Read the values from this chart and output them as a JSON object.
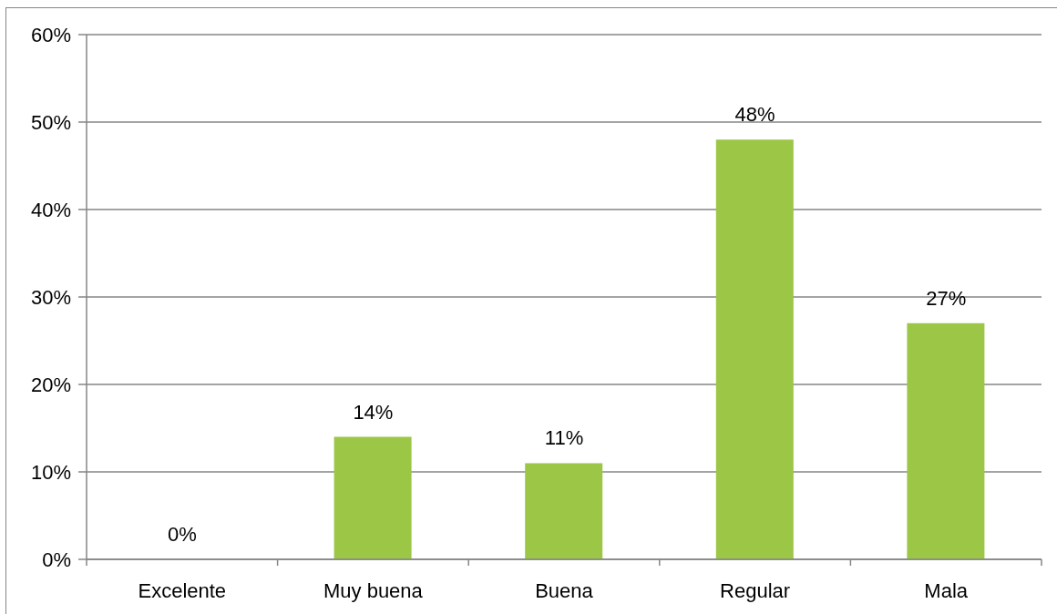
{
  "chart_data": {
    "type": "bar",
    "categories": [
      "Excelente",
      "Muy buena",
      "Buena",
      "Regular",
      "Mala"
    ],
    "values": [
      0,
      14,
      11,
      48,
      27
    ],
    "color": "#9cc646",
    "value_labels": [
      "0%",
      "14%",
      "11%",
      "48%",
      "27%"
    ],
    "ylim": [
      0,
      60
    ],
    "yticks": [
      {
        "value": 0,
        "label": "0%"
      },
      {
        "value": 10,
        "label": "10%"
      },
      {
        "value": 20,
        "label": "20%"
      },
      {
        "value": 30,
        "label": "30%"
      },
      {
        "value": 40,
        "label": "40%"
      },
      {
        "value": 50,
        "label": "50%"
      },
      {
        "value": 60,
        "label": "60%"
      }
    ],
    "grid": "y"
  }
}
